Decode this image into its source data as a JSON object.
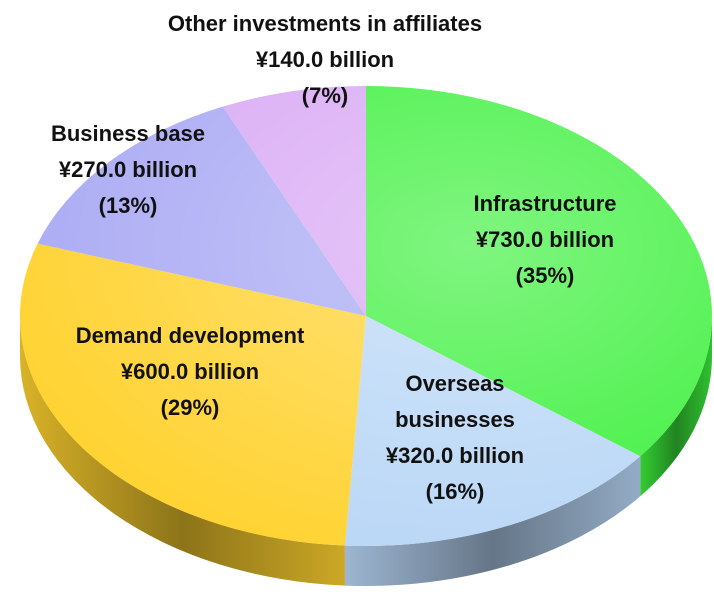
{
  "chart_data": {
    "type": "pie",
    "categories": [
      "Infrastructure",
      "Overseas businesses",
      "Demand development",
      "Business base",
      "Other investments in affiliates"
    ],
    "values": [
      730,
      320,
      600,
      270,
      140
    ],
    "value_labels": [
      "¥730.0 billion",
      "¥320.0 billion",
      "¥600.0 billion",
      "¥270.0 billion",
      "¥140.0 billion"
    ],
    "percentages": [
      35,
      16,
      29,
      13,
      7
    ],
    "percentage_labels": [
      "(35%)",
      "(16%)",
      "(29%)",
      "(13%)",
      "(7%)"
    ],
    "colors": [
      "#3cf03c",
      "#b8d6f6",
      "#ffd22e",
      "#a8a8f4",
      "#d8a8f4"
    ]
  }
}
